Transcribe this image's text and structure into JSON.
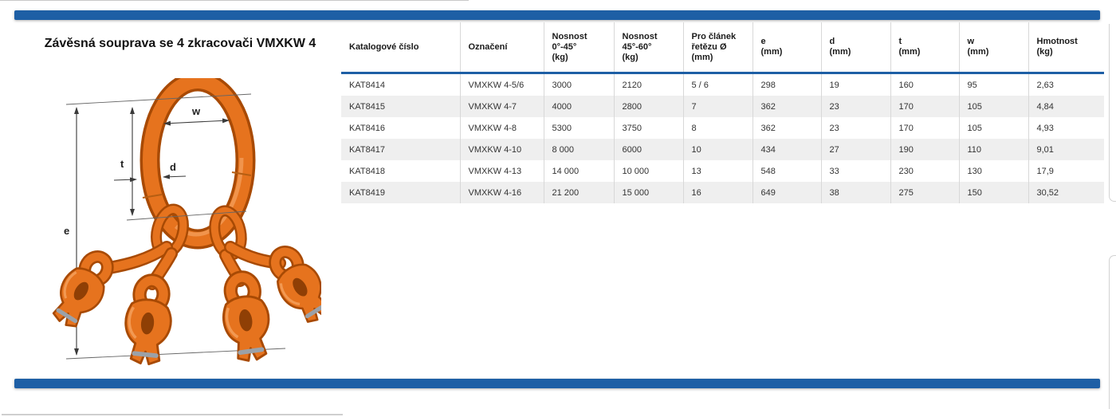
{
  "title": "Závěsná souprava se 4 zkracovači VMXKW 4",
  "theme": {
    "accent_blue": "#1e5fa5",
    "row_stripe_gray": "#efefef",
    "product_orange": "#e6731e",
    "separator_gray": "#d8d8d8"
  },
  "diagram": {
    "type": "technical-drawing",
    "subject": "chain sling assembly with oblong master link and 4 shortening hooks",
    "dimension_labels": {
      "w": "w",
      "t": "t",
      "d": "d",
      "e": "e"
    }
  },
  "table": {
    "columns": [
      "Katalogové číslo",
      "Označení",
      "Nosnost\n0°-45°\n(kg)",
      "Nosnost\n45°-60°\n(kg)",
      "Pro článek\nřetězu Ø\n(mm)",
      "e\n(mm)",
      "d\n(mm)",
      "t\n(mm)",
      "w\n(mm)",
      "Hmotnost\n(kg)"
    ],
    "rows": [
      [
        "KAT8414",
        "VMXKW 4-5/6",
        "3000",
        "2120",
        "5 / 6",
        "298",
        "19",
        "160",
        "95",
        "2,63"
      ],
      [
        "KAT8415",
        "VMXKW 4-7",
        "4000",
        "2800",
        "7",
        "362",
        "23",
        "170",
        "105",
        "4,84"
      ],
      [
        "KAT8416",
        "VMXKW 4-8",
        "5300",
        "3750",
        "8",
        "362",
        "23",
        "170",
        "105",
        "4,93"
      ],
      [
        "KAT8417",
        "VMXKW 4-10",
        "8 000",
        "6000",
        "10",
        "434",
        "27",
        "190",
        "110",
        "9,01"
      ],
      [
        "KAT8418",
        "VMXKW 4-13",
        "14 000",
        "10 000",
        "13",
        "548",
        "33",
        "230",
        "130",
        "17,9"
      ],
      [
        "KAT8419",
        "VMXKW 4-16",
        "21 200",
        "15 000",
        "16",
        "649",
        "38",
        "275",
        "150",
        "30,52"
      ]
    ]
  }
}
